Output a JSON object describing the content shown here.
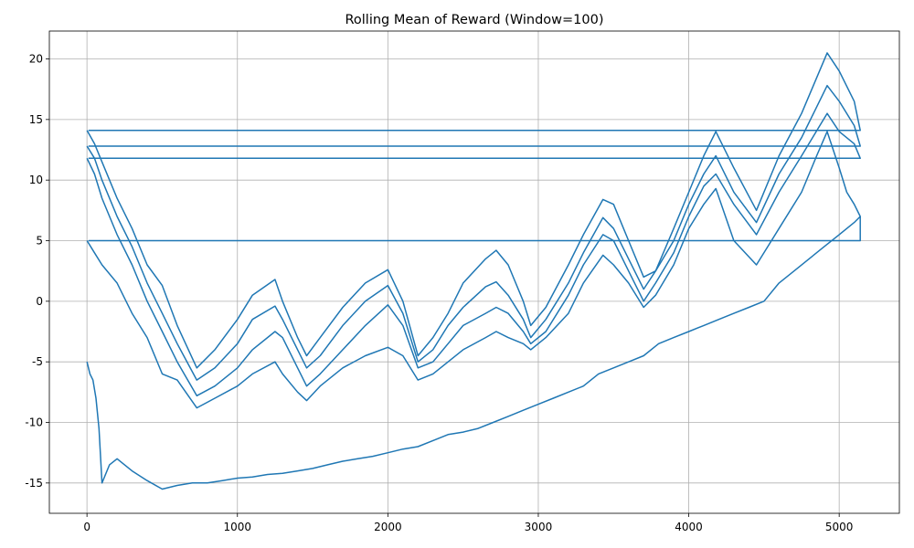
{
  "chart_data": {
    "type": "line",
    "title": "Rolling Mean of Reward (Window=100)",
    "xlabel": "",
    "ylabel": "",
    "xlim": [
      -250,
      5400
    ],
    "ylim": [
      -17.5,
      22.3
    ],
    "x_ticks": [
      0,
      1000,
      2000,
      3000,
      4000,
      5000
    ],
    "y_ticks": [
      -15,
      -10,
      -5,
      0,
      5,
      10,
      15,
      20
    ],
    "grid": true,
    "legend": "none",
    "series_color": "#1f77b4",
    "series": [
      {
        "x": [
          0,
          50,
          100,
          200,
          300,
          400,
          500,
          600,
          730,
          850,
          1000,
          1100,
          1250,
          1300,
          1400,
          1460,
          1550,
          1700,
          1850,
          2000,
          2100,
          2200,
          2300,
          2400,
          2500,
          2650,
          2720,
          2800,
          2900,
          2950,
          3050,
          3200,
          3300,
          3430,
          3500,
          3600,
          3700,
          3780,
          3900,
          4000,
          4100,
          4180,
          4300,
          4450,
          4600,
          4750,
          4920,
          5000,
          5100,
          5140,
          5140,
          10,
          10
        ],
        "y": [
          14.1,
          13.0,
          11.5,
          8.5,
          6.0,
          3.0,
          1.3,
          -2.0,
          -5.5,
          -4.0,
          -1.5,
          0.5,
          1.8,
          0.0,
          -3.0,
          -4.5,
          -3.0,
          -0.5,
          1.5,
          2.6,
          0.0,
          -4.5,
          -3.0,
          -1.0,
          1.5,
          3.5,
          4.2,
          3.0,
          0.0,
          -2.0,
          -0.5,
          3.0,
          5.5,
          8.4,
          8.0,
          5.0,
          2.0,
          2.5,
          6.0,
          9.0,
          12.0,
          14.0,
          11.0,
          7.5,
          12.0,
          15.5,
          20.5,
          19.0,
          16.5,
          14.1,
          14.1,
          14.1,
          14.1
        ]
      },
      {
        "x": [
          0,
          50,
          100,
          200,
          300,
          400,
          500,
          600,
          730,
          850,
          1000,
          1100,
          1250,
          1300,
          1400,
          1460,
          1550,
          1700,
          1850,
          2000,
          2100,
          2200,
          2300,
          2400,
          2500,
          2650,
          2720,
          2800,
          2900,
          2950,
          3050,
          3200,
          3300,
          3430,
          3500,
          3600,
          3700,
          3780,
          3900,
          4000,
          4100,
          4180,
          4300,
          4450,
          4600,
          4750,
          4920,
          5000,
          5100,
          5140,
          5140,
          10,
          10
        ],
        "y": [
          12.8,
          11.8,
          10.0,
          7.0,
          4.5,
          1.5,
          -1.0,
          -3.5,
          -6.5,
          -5.5,
          -3.5,
          -1.5,
          -0.4,
          -1.5,
          -4.0,
          -5.5,
          -4.5,
          -2.0,
          0.0,
          1.3,
          -1.0,
          -5.0,
          -4.0,
          -2.0,
          -0.5,
          1.2,
          1.6,
          0.5,
          -1.5,
          -3.0,
          -1.5,
          1.5,
          4.0,
          6.9,
          6.0,
          3.5,
          1.0,
          2.5,
          5.0,
          8.0,
          10.5,
          12.0,
          9.0,
          6.5,
          10.5,
          13.5,
          17.8,
          16.5,
          14.5,
          12.8,
          12.8,
          12.8,
          12.8
        ]
      },
      {
        "x": [
          0,
          50,
          100,
          200,
          300,
          400,
          500,
          600,
          730,
          850,
          1000,
          1100,
          1250,
          1300,
          1400,
          1460,
          1550,
          1700,
          1850,
          2000,
          2100,
          2200,
          2300,
          2400,
          2500,
          2650,
          2720,
          2800,
          2900,
          2950,
          3050,
          3200,
          3300,
          3430,
          3500,
          3600,
          3700,
          3780,
          3900,
          4000,
          4100,
          4180,
          4300,
          4450,
          4600,
          4750,
          4920,
          5000,
          5100,
          5140,
          5140,
          10,
          10
        ],
        "y": [
          11.8,
          10.5,
          8.5,
          5.5,
          3.0,
          0.0,
          -2.5,
          -5.0,
          -7.8,
          -7.0,
          -5.5,
          -4.0,
          -2.5,
          -3.0,
          -5.5,
          -7.0,
          -6.0,
          -4.0,
          -2.0,
          -0.3,
          -2.0,
          -5.5,
          -5.0,
          -3.5,
          -2.0,
          -1.0,
          -0.5,
          -1.0,
          -2.5,
          -3.5,
          -2.5,
          0.5,
          3.0,
          5.5,
          5.0,
          2.5,
          0.0,
          1.5,
          4.0,
          7.0,
          9.5,
          10.5,
          8.0,
          5.5,
          9.0,
          12.0,
          15.5,
          14.0,
          13.0,
          11.8,
          11.8,
          11.8,
          11.8
        ]
      },
      {
        "x": [
          0,
          50,
          100,
          200,
          300,
          400,
          500,
          600,
          730,
          850,
          1000,
          1100,
          1250,
          1300,
          1400,
          1460,
          1550,
          1700,
          1850,
          2000,
          2100,
          2200,
          2300,
          2400,
          2500,
          2650,
          2720,
          2800,
          2900,
          2950,
          3050,
          3200,
          3300,
          3430,
          3500,
          3600,
          3700,
          3780,
          3900,
          4000,
          4100,
          4180,
          4300,
          4450,
          4600,
          4750,
          4850,
          4920,
          5000,
          5050,
          5100,
          5140,
          5140,
          10,
          10
        ],
        "y": [
          5.0,
          4.0,
          3.0,
          1.5,
          -1.0,
          -3.0,
          -6.0,
          -6.5,
          -8.8,
          -8.0,
          -7.0,
          -6.0,
          -5.0,
          -6.0,
          -7.5,
          -8.2,
          -7.0,
          -5.5,
          -4.5,
          -3.8,
          -4.5,
          -6.5,
          -6.0,
          -5.0,
          -4.0,
          -3.0,
          -2.5,
          -3.0,
          -3.5,
          -4.0,
          -3.0,
          -1.0,
          1.5,
          3.8,
          3.0,
          1.5,
          -0.5,
          0.5,
          3.0,
          6.0,
          8.0,
          9.3,
          5.0,
          3.0,
          6.0,
          9.0,
          12.0,
          14.0,
          11.0,
          9.0,
          8.0,
          7.0,
          5.0,
          5.0,
          5.0
        ]
      },
      {
        "x": [
          0,
          20,
          40,
          60,
          80,
          100,
          150,
          200,
          300,
          400,
          500,
          600,
          700,
          800,
          900,
          1000,
          1100,
          1200,
          1300,
          1400,
          1500,
          1600,
          1700,
          1800,
          1900,
          2000,
          2100,
          2200,
          2300,
          2400,
          2500,
          2600,
          2700,
          2800,
          2900,
          3000,
          3100,
          3200,
          3300,
          3400,
          3500,
          3600,
          3700,
          3800,
          3900,
          4000,
          4100,
          4200,
          4300,
          4400,
          4500,
          4600,
          4700,
          4800,
          4900,
          5000,
          5100,
          5140
        ],
        "y": [
          -5.0,
          -6.0,
          -6.5,
          -8.0,
          -10.5,
          -15.0,
          -13.5,
          -13.0,
          -14.0,
          -14.8,
          -15.5,
          -15.2,
          -15.0,
          -15.0,
          -14.8,
          -14.6,
          -14.5,
          -14.3,
          -14.2,
          -14.0,
          -13.8,
          -13.5,
          -13.2,
          -13.0,
          -12.8,
          -12.5,
          -12.2,
          -12.0,
          -11.5,
          -11.0,
          -10.8,
          -10.5,
          -10.0,
          -9.5,
          -9.0,
          -8.5,
          -8.0,
          -7.5,
          -7.0,
          -6.0,
          -5.5,
          -5.0,
          -4.5,
          -3.5,
          -3.0,
          -2.5,
          -2.0,
          -1.5,
          -1.0,
          -0.5,
          0.0,
          1.5,
          2.5,
          3.5,
          4.5,
          5.5,
          6.5,
          7.0
        ]
      }
    ]
  }
}
